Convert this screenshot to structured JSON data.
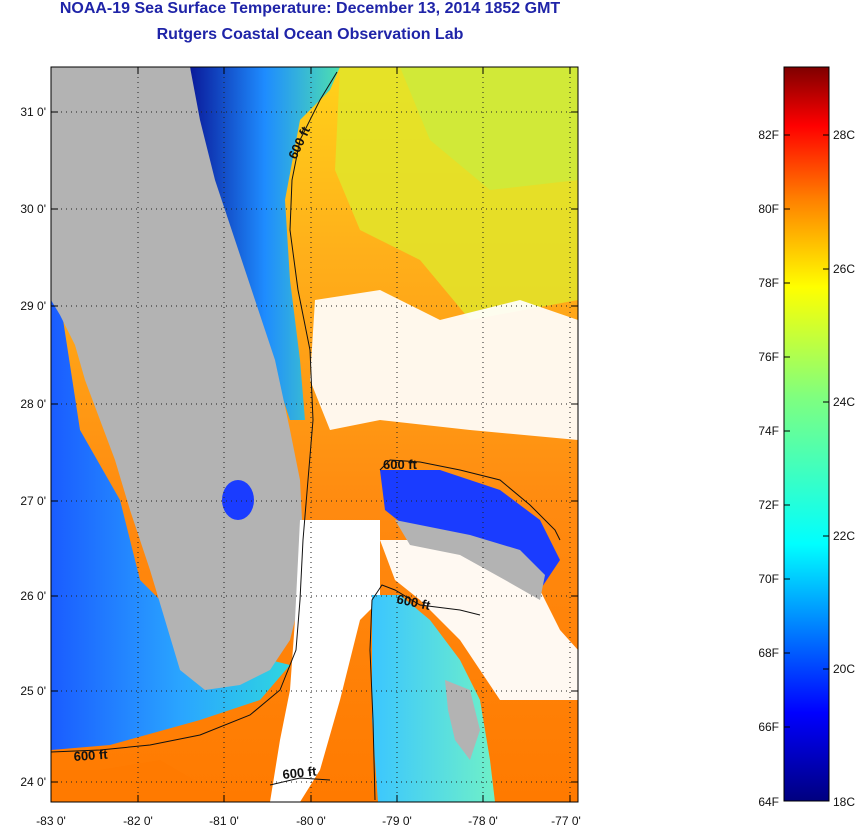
{
  "title": {
    "main": "NOAA-19 Sea Surface Temperature:  December 13, 2014 1852 GMT",
    "sub": "Rutgers Coastal Ocean Observation Lab"
  },
  "map": {
    "lat_ticks": [
      "31 0'",
      "30 0'",
      "29 0'",
      "28 0'",
      "27 0'",
      "26 0'",
      "25 0'",
      "24 0'"
    ],
    "lon_ticks": [
      "-83 0'",
      "-82 0'",
      "-81 0'",
      "-80 0'",
      "-79 0'",
      "-78 0'",
      "-77 0'"
    ],
    "contour_labels": [
      "600 ft",
      "600 ft",
      "600 ft",
      "600 ft",
      "600 ft"
    ],
    "colors": {
      "land": "#b3b3b3",
      "cloud": "#ffffff",
      "cold": "#00007a",
      "warm": "#ff8a00"
    }
  },
  "colorbar": {
    "f_labels": [
      "82F",
      "80F",
      "78F",
      "76F",
      "74F",
      "72F",
      "70F",
      "68F",
      "66F",
      "64F"
    ],
    "c_labels": [
      "28C",
      "26C",
      "24C",
      "22C",
      "20C",
      "18C"
    ]
  }
}
